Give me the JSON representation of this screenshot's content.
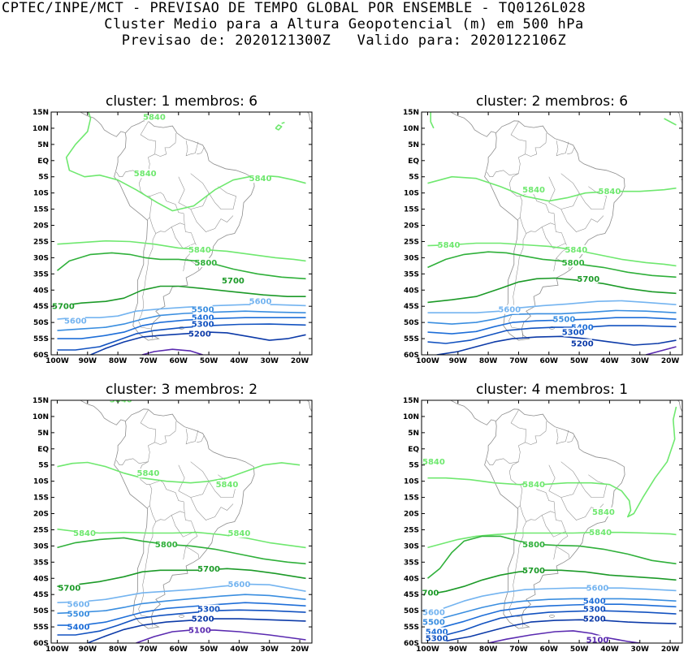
{
  "header": {
    "line1": "CPTEC/INPE/MCT - PREVISAO DE TEMPO GLOBAL POR ENSEMBLE - TQ0126L028",
    "line2": "Cluster Medio para a Altura Geopotencial (m) em 500 hPa",
    "line3": "Previsao de: 2020121300Z   Valido para: 2020122106Z"
  },
  "axes": {
    "lat_ticks": [
      "15N",
      "10N",
      "5N",
      "EQ",
      "5S",
      "10S",
      "15S",
      "20S",
      "25S",
      "30S",
      "35S",
      "40S",
      "45S",
      "50S",
      "55S",
      "60S"
    ],
    "lon_ticks": [
      "100W",
      "90W",
      "80W",
      "70W",
      "60W",
      "50W",
      "40W",
      "30W",
      "20W"
    ]
  },
  "colors": {
    "c5840": "#6fe86f",
    "c5800": "#2fb03a",
    "c5700": "#1c9a28",
    "c5600": "#74b4f0",
    "c5500": "#3a8ee0",
    "c5400": "#1e6ed8",
    "c5300": "#1252c0",
    "c5200": "#0c3aa8",
    "c5100": "#5a2ab0",
    "coast": "#8c8c8c"
  },
  "panels": [
    {
      "title": "cluster: 1   membros: 6",
      "labels": [
        {
          "text": "5840",
          "level": "c5840"
        },
        {
          "text": "5840",
          "level": "c5840"
        },
        {
          "text": "5840",
          "level": "c5840"
        },
        {
          "text": "5840",
          "level": "c5840"
        },
        {
          "text": "5800",
          "level": "c5800"
        },
        {
          "text": "5700",
          "level": "c5700"
        },
        {
          "text": "5700",
          "level": "c5700"
        },
        {
          "text": "5600",
          "level": "c5600"
        },
        {
          "text": "5600",
          "level": "c5600"
        },
        {
          "text": "5500",
          "level": "c5500"
        },
        {
          "text": "5400",
          "level": "c5400"
        },
        {
          "text": "5300",
          "level": "c5300"
        },
        {
          "text": "5200",
          "level": "c5200"
        }
      ]
    },
    {
      "title": "cluster: 2   membros: 6",
      "labels": [
        {
          "text": "5840",
          "level": "c5840"
        },
        {
          "text": "5840",
          "level": "c5840"
        },
        {
          "text": "5840",
          "level": "c5840"
        },
        {
          "text": "5840",
          "level": "c5840"
        },
        {
          "text": "5800",
          "level": "c5800"
        },
        {
          "text": "5700",
          "level": "c5700"
        },
        {
          "text": "5600",
          "level": "c5600"
        },
        {
          "text": "5500",
          "level": "c5500"
        },
        {
          "text": "5400",
          "level": "c5400"
        },
        {
          "text": "5300",
          "level": "c5300"
        },
        {
          "text": "5200",
          "level": "c5200"
        }
      ]
    },
    {
      "title": "cluster: 3   membros: 2",
      "labels": [
        {
          "text": "5840",
          "level": "c5840"
        },
        {
          "text": "5840",
          "level": "c5840"
        },
        {
          "text": "5840",
          "level": "c5840"
        },
        {
          "text": "5840",
          "level": "c5840"
        },
        {
          "text": "5840",
          "level": "c5840"
        },
        {
          "text": "5800",
          "level": "c5800"
        },
        {
          "text": "5700",
          "level": "c5700"
        },
        {
          "text": "5700",
          "level": "c5700"
        },
        {
          "text": "5600",
          "level": "c5600"
        },
        {
          "text": "5600",
          "level": "c5600"
        },
        {
          "text": "5500",
          "level": "c5500"
        },
        {
          "text": "5400",
          "level": "c5400"
        },
        {
          "text": "5300",
          "level": "c5300"
        },
        {
          "text": "5200",
          "level": "c5200"
        },
        {
          "text": "5100",
          "level": "c5100"
        }
      ]
    },
    {
      "title": "cluster: 4   membros: 1",
      "labels": [
        {
          "text": "5840",
          "level": "c5840"
        },
        {
          "text": "5840",
          "level": "c5840"
        },
        {
          "text": "5840",
          "level": "c5840"
        },
        {
          "text": "5840",
          "level": "c5840"
        },
        {
          "text": "5800",
          "level": "c5800"
        },
        {
          "text": "5700",
          "level": "c5700"
        },
        {
          "text": "5700",
          "level": "c5700"
        },
        {
          "text": "5600",
          "level": "c5600"
        },
        {
          "text": "5600",
          "level": "c5600"
        },
        {
          "text": "5500",
          "level": "c5500"
        },
        {
          "text": "5400",
          "level": "c5400"
        },
        {
          "text": "5400",
          "level": "c5400"
        },
        {
          "text": "5300",
          "level": "c5300"
        },
        {
          "text": "5300",
          "level": "c5300"
        },
        {
          "text": "5200",
          "level": "c5200"
        },
        {
          "text": "5100",
          "level": "c5100"
        }
      ]
    }
  ]
}
